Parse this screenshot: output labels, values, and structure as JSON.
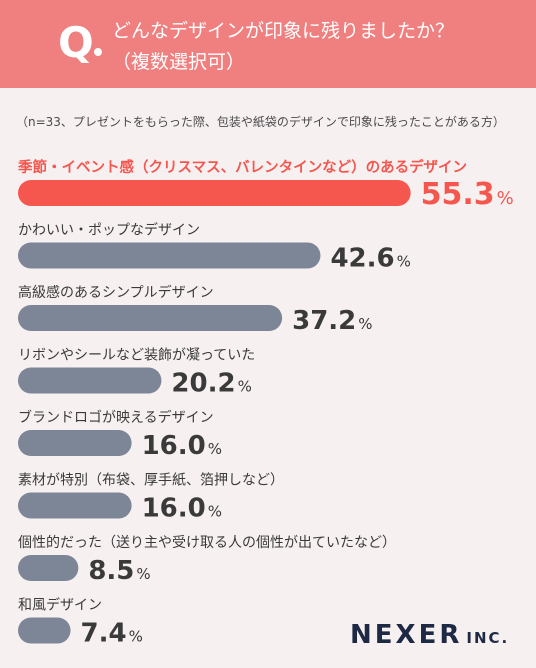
{
  "header": {
    "q_letter": "Q",
    "question_line1": "どんなデザインが印象に残りましたか？",
    "question_line2": "（複数選択可）"
  },
  "note": "（n=33、プレゼントをもらった際、包装や紙袋のデザインで印象に残ったことがある方）",
  "logo": {
    "name": "NEXER",
    "suffix": "INC."
  },
  "colors": {
    "header": "#f08080",
    "highlight_bar": "#f5574f",
    "bar": "#7c8696",
    "highlight_text": "#f5574f",
    "text": "#3a3a3a"
  },
  "chart_data": {
    "type": "bar",
    "orientation": "horizontal",
    "unit": "%",
    "categories": [
      "季節・イベント感（クリスマス、バレンタインなど）のあるデザイン",
      "かわいい・ポップなデザイン",
      "高級感のあるシンプルデザイン",
      "リボンやシールなど装飾が凝っていた",
      "ブランドロゴが映えるデザイン",
      "素材が特別（布袋、厚手紙、箔押しなど）",
      "個性的だった（送り主や受け取る人の個性が出ていたなど）",
      "和風デザイン"
    ],
    "values": [
      55.3,
      42.6,
      37.2,
      20.2,
      16.0,
      16.0,
      8.5,
      7.4
    ],
    "labels": [
      "55.3",
      "42.6",
      "37.2",
      "20.2",
      "16.0",
      "16.0",
      "8.5",
      "7.4"
    ],
    "highlight_index": 0
  }
}
